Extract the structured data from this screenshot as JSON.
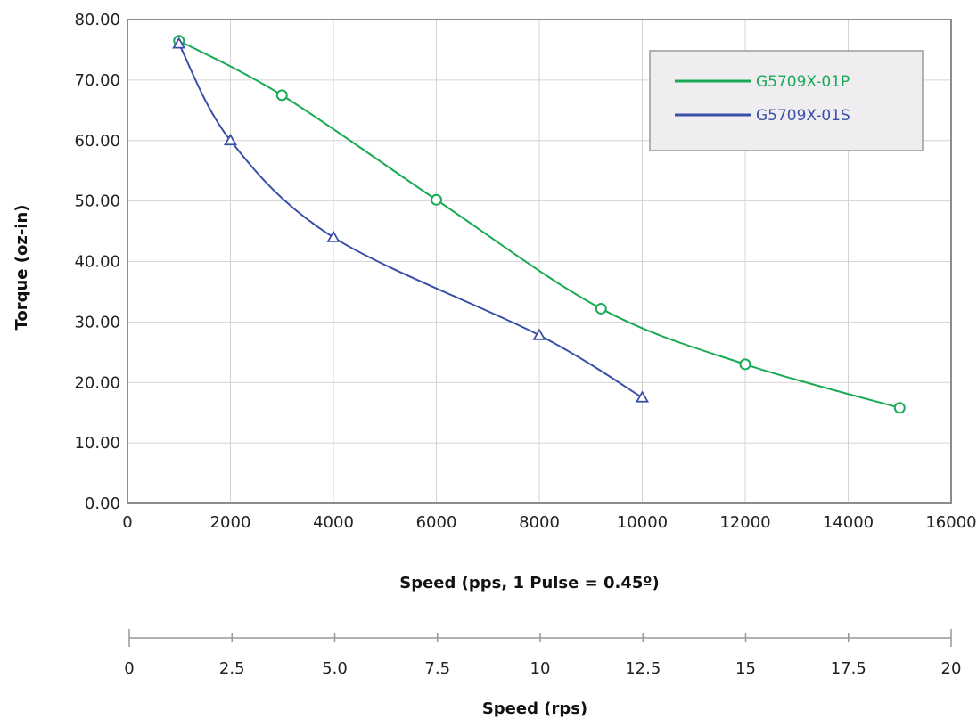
{
  "chart_data": {
    "type": "line",
    "xlabel": "Speed (pps, 1 Pulse = 0.45º)",
    "ylabel": "Torque (oz-in)",
    "xlim": [
      0,
      16000
    ],
    "ylim": [
      0,
      80
    ],
    "x_ticks": [
      "0",
      "2000",
      "4000",
      "6000",
      "8000",
      "10000",
      "12000",
      "14000",
      "16000"
    ],
    "y_ticks": [
      "0.00",
      "10.00",
      "20.00",
      "30.00",
      "40.00",
      "50.00",
      "60.00",
      "70.00",
      "80.00"
    ],
    "grid": true,
    "legend_position": "top-right",
    "secondary_axis": {
      "label": "Speed (rps)",
      "range": [
        0,
        20
      ],
      "ticks": [
        "0",
        "2.5",
        "5.0",
        "7.5",
        "10",
        "12.5",
        "15",
        "17.5",
        "20"
      ]
    },
    "series": [
      {
        "name": "G5709X-01P",
        "color": "#1aaa55",
        "marker": "circle",
        "x": [
          1000,
          3000,
          6000,
          9200,
          12000,
          15000
        ],
        "y": [
          76.5,
          67.5,
          50.2,
          32.2,
          23.0,
          15.8
        ]
      },
      {
        "name": "G5709X-01S",
        "color": "#3a4fa8",
        "marker": "triangle",
        "x": [
          1000,
          2000,
          4000,
          8000,
          10000
        ],
        "y": [
          76.0,
          60.0,
          44.0,
          27.8,
          17.5
        ]
      }
    ]
  }
}
